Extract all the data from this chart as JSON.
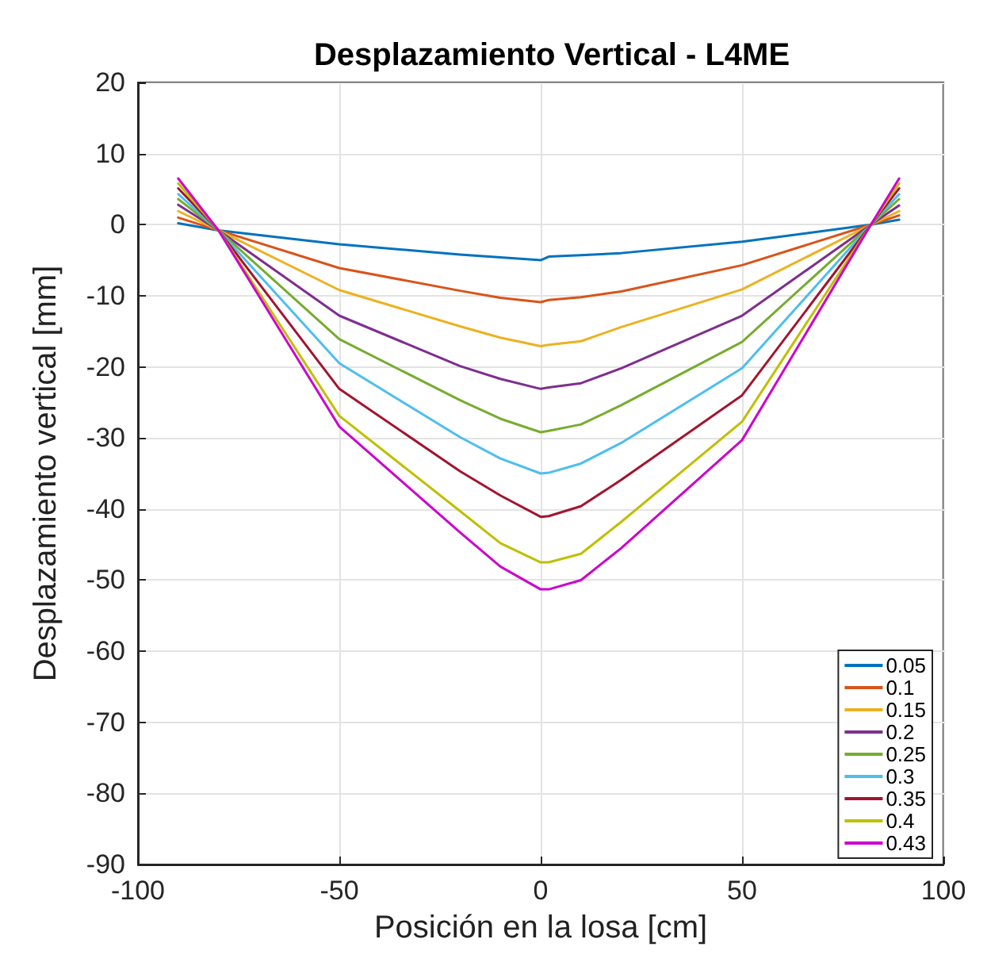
{
  "chart_data": {
    "type": "line",
    "title": "Desplazamiento Vertical - L4ME",
    "xlabel": "Posición en la losa [cm]",
    "ylabel": "Desplazamiento vertical [mm]",
    "x": [
      -90,
      -80,
      -50,
      -20,
      -10,
      0,
      2,
      10,
      20,
      50,
      82,
      89
    ],
    "xlim": [
      -100,
      100
    ],
    "xticks": [
      -100,
      -50,
      0,
      50,
      100
    ],
    "ylim": [
      -90,
      20
    ],
    "yticks": [
      -90,
      -80,
      -70,
      -60,
      -50,
      -40,
      -30,
      -20,
      -10,
      0,
      10,
      20
    ],
    "grid": true,
    "legend": "bottom right",
    "marker": "none",
    "line_style": "solid",
    "series": [
      {
        "name": "0.05",
        "color": "#0072bd",
        "values": [
          0.2,
          -0.8,
          -2.75,
          -4.2,
          -4.6,
          -5.0,
          -4.5,
          -4.3,
          -4.0,
          -2.4,
          0,
          0.7
        ]
      },
      {
        "name": "0.1",
        "color": "#d95319",
        "values": [
          1.0,
          -0.8,
          -6.1,
          -9.3,
          -10.3,
          -10.9,
          -10.6,
          -10.2,
          -9.4,
          -5.7,
          0,
          1.3
        ]
      },
      {
        "name": "0.15",
        "color": "#edb120",
        "values": [
          1.9,
          -0.8,
          -9.2,
          -14.3,
          -15.9,
          -17.1,
          -16.9,
          -16.4,
          -14.4,
          -9.1,
          0,
          1.9
        ]
      },
      {
        "name": "0.2",
        "color": "#7e2f8e",
        "values": [
          2.8,
          -0.8,
          -12.8,
          -19.9,
          -21.7,
          -23.1,
          -22.9,
          -22.3,
          -20.2,
          -12.8,
          0,
          2.7
        ]
      },
      {
        "name": "0.25",
        "color": "#77ac30",
        "values": [
          3.6,
          -0.8,
          -16.1,
          -24.7,
          -27.3,
          -29.2,
          -29.0,
          -28.1,
          -25.4,
          -16.5,
          0,
          3.6
        ]
      },
      {
        "name": "0.3",
        "color": "#4dbeee",
        "values": [
          4.3,
          -0.8,
          -19.5,
          -29.9,
          -32.9,
          -35.0,
          -34.9,
          -33.6,
          -30.7,
          -20.2,
          0,
          4.3
        ]
      },
      {
        "name": "0.35",
        "color": "#a2142f",
        "values": [
          5.1,
          -0.8,
          -23.1,
          -34.7,
          -38.1,
          -41.1,
          -41.0,
          -39.6,
          -35.9,
          -24.0,
          0,
          5.1
        ]
      },
      {
        "name": "0.4",
        "color": "#bfbf00",
        "values": [
          5.8,
          -0.8,
          -26.9,
          -40.3,
          -44.8,
          -47.5,
          -47.5,
          -46.3,
          -41.8,
          -27.7,
          0,
          5.8
        ]
      },
      {
        "name": "0.43",
        "color": "#cc00cc",
        "values": [
          6.5,
          -0.8,
          -28.4,
          -43.3,
          -48.1,
          -51.3,
          -51.3,
          -50.0,
          -45.5,
          -30.3,
          0,
          6.5
        ]
      }
    ]
  }
}
